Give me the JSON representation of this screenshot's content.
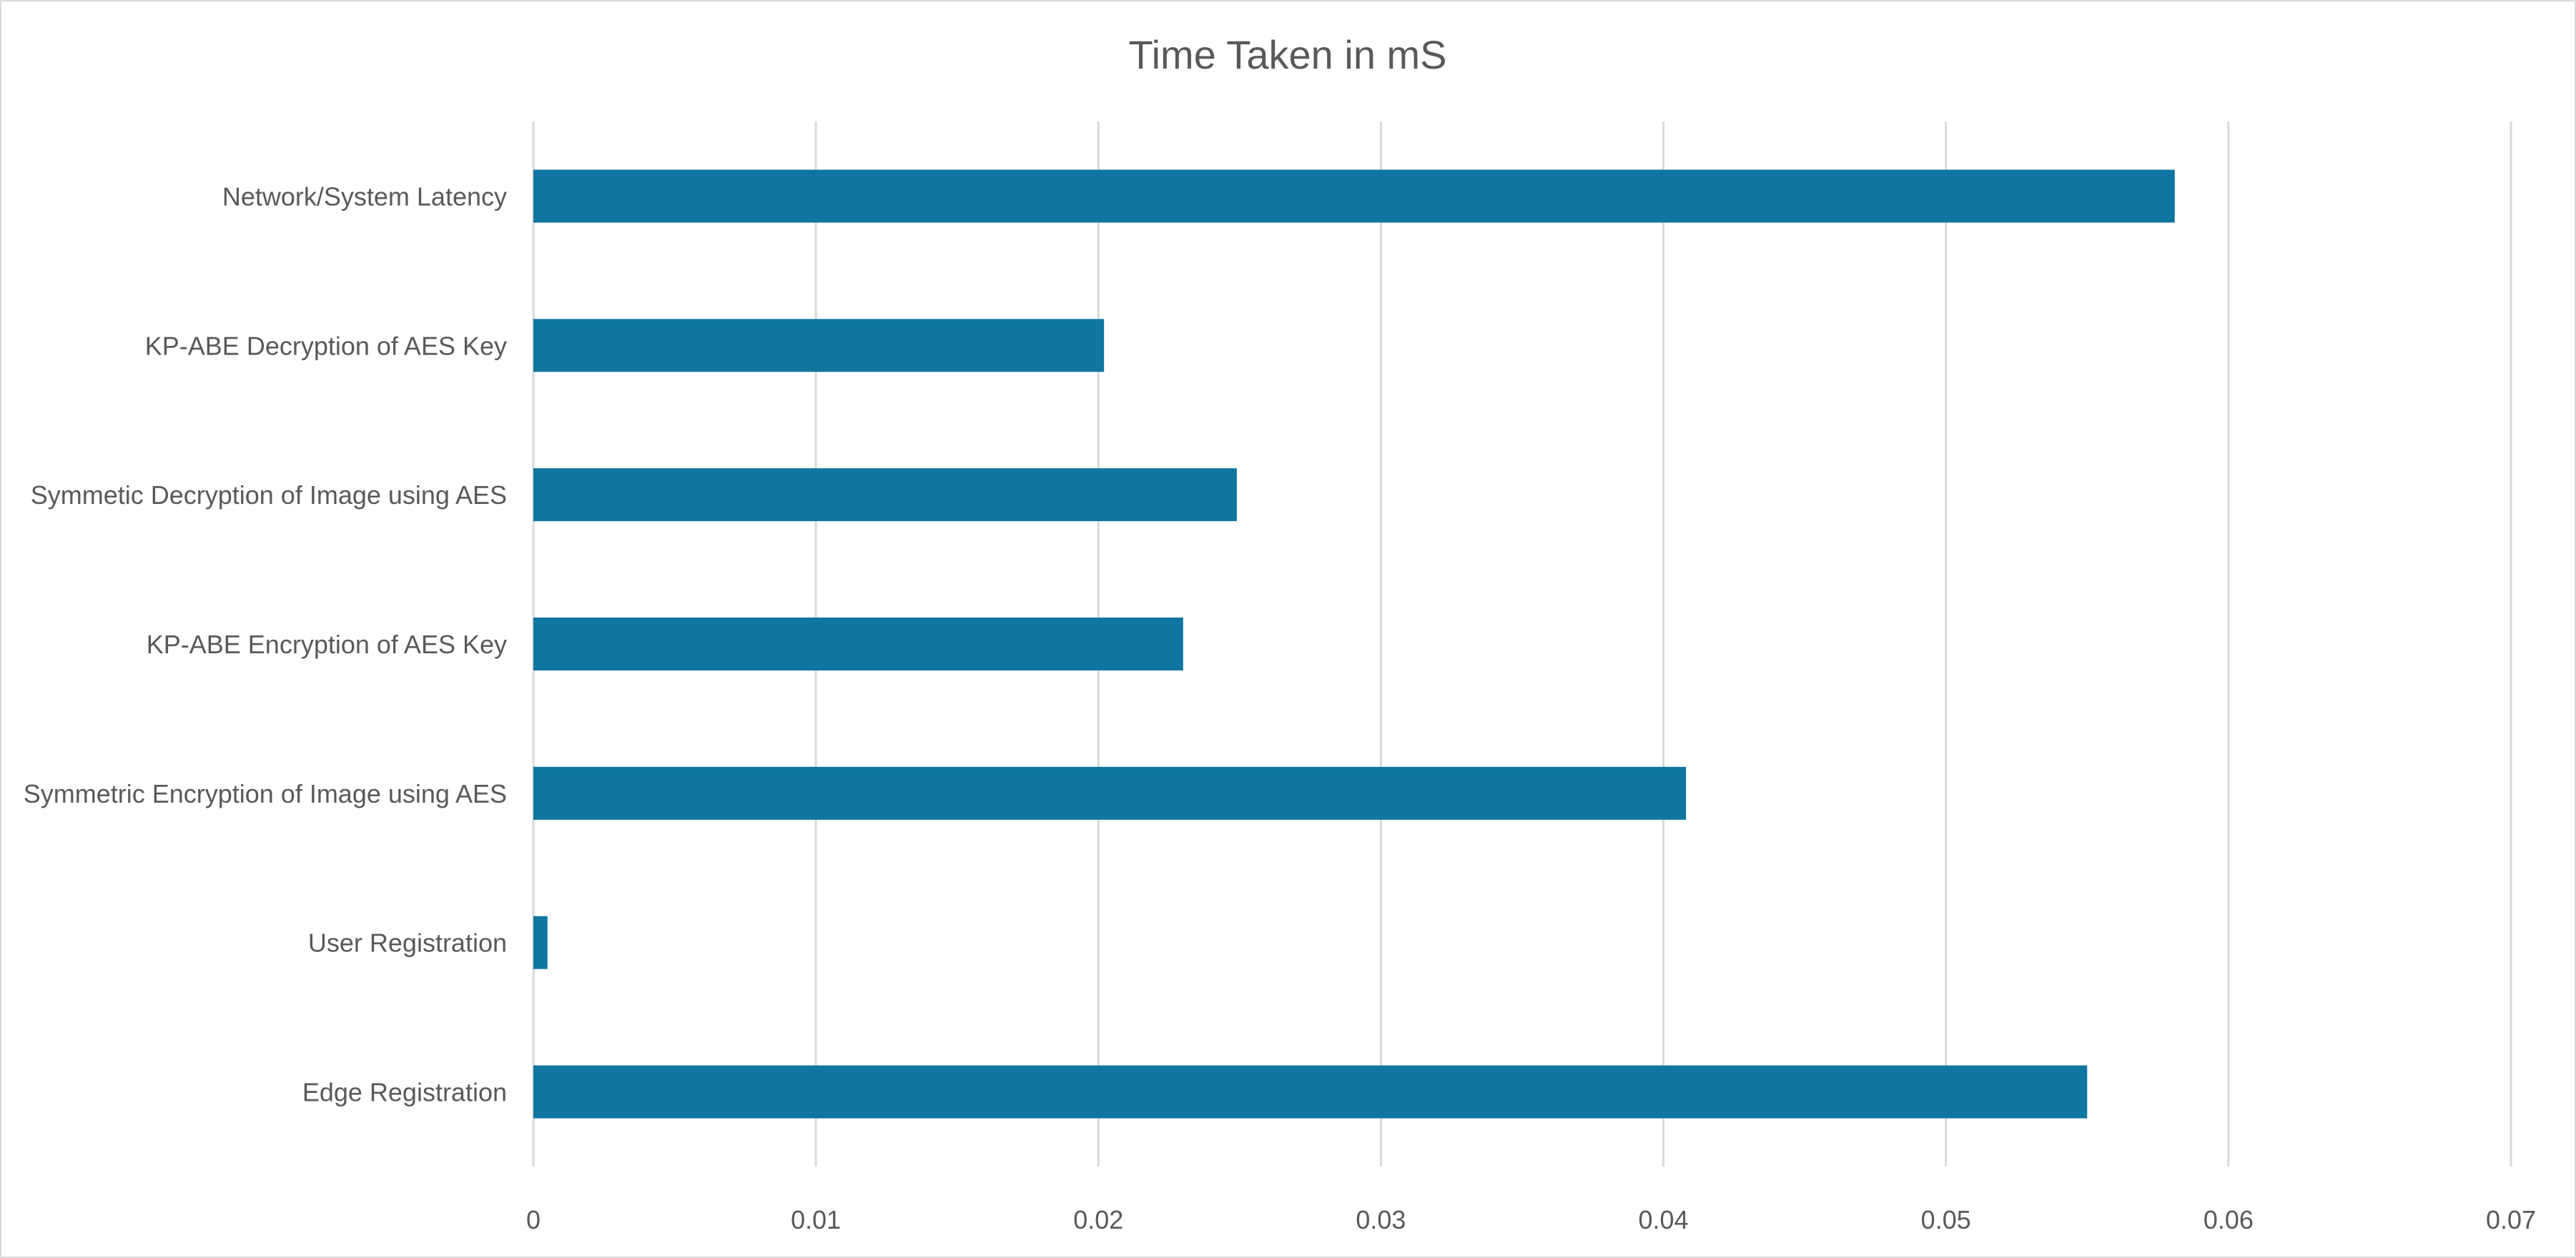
{
  "chart_data": {
    "type": "bar",
    "orientation": "horizontal",
    "title": "Time Taken in mS",
    "xlabel": "",
    "ylabel": "",
    "categories": [
      "Edge Registration",
      "User Registration",
      "Symmetric Encryption of Image using AES",
      "KP-ABE Encryption of AES Key",
      "Symmetic Decryption of Image using AES",
      "KP-ABE Decryption of AES Key",
      "Network/System Latency"
    ],
    "values": [
      0.055,
      0.0005,
      0.0408,
      0.023,
      0.0249,
      0.0202,
      0.0581
    ],
    "xlim": [
      0,
      0.07
    ],
    "x_ticks": [
      0,
      0.01,
      0.02,
      0.03,
      0.04,
      0.05,
      0.06,
      0.07
    ],
    "x_tick_labels": [
      "0",
      "0.01",
      "0.02",
      "0.03",
      "0.04",
      "0.05",
      "0.06",
      "0.07"
    ],
    "grid": "vertical",
    "legend": "none",
    "bar_color": "#0e76a0"
  }
}
